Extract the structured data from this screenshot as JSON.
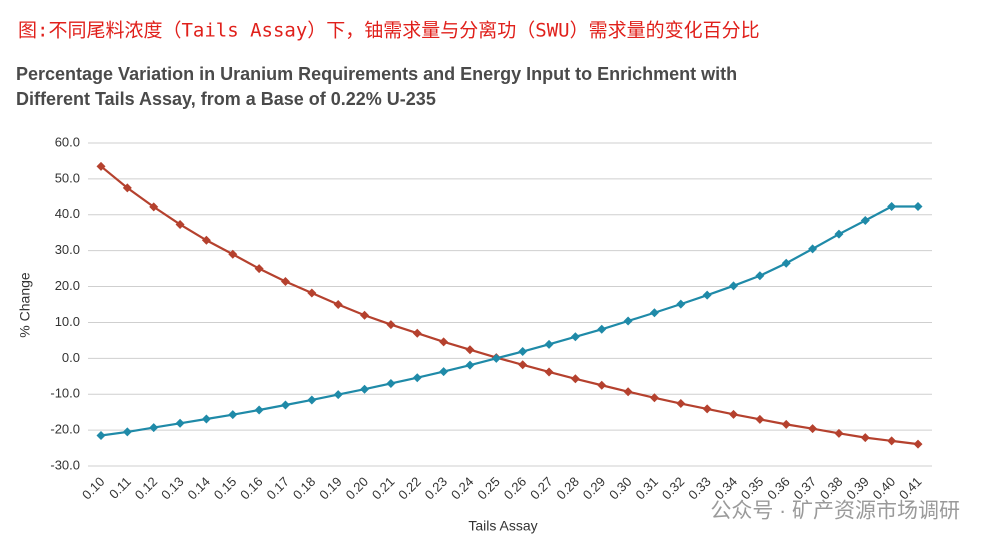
{
  "caption": "图:不同尾料浓度（Tails Assay）下，铀需求量与分离功（SWU）需求量的变化百分比",
  "watermark": "公众号 · 矿产资源市场调研",
  "chart_data": {
    "type": "line",
    "title": [
      "Percentage Variation in Uranium Requirements and Energy Input to Enrichment with",
      "Different Tails Assay, from a Base of 0.22% U-235"
    ],
    "x_label": "Tails Assay",
    "y_label": "% Change",
    "categories": [
      "0.10",
      "0.11",
      "0.12",
      "0.13",
      "0.14",
      "0.15",
      "0.16",
      "0.17",
      "0.18",
      "0.19",
      "0.20",
      "0.21",
      "0.22",
      "0.23",
      "0.24",
      "0.25",
      "0.26",
      "0.27",
      "0.28",
      "0.29",
      "0.30",
      "0.31",
      "0.32",
      "0.33",
      "0.34",
      "0.35",
      "0.36",
      "0.37",
      "0.38",
      "0.39",
      "0.40",
      "0.41"
    ],
    "series": [
      {
        "color": "#b5412e",
        "values": [
          53.5,
          47.5,
          42.2,
          37.3,
          32.9,
          29.0,
          25.0,
          21.4,
          18.2,
          15.0,
          12.0,
          9.4,
          7.0,
          4.6,
          2.4,
          0.2,
          -1.8,
          -3.8,
          -5.7,
          -7.5,
          -9.3,
          -11.0,
          -12.6,
          -14.1,
          -15.6,
          -17.0,
          -18.4,
          -19.6,
          -20.9,
          -22.1,
          -23.0,
          -23.9
        ]
      },
      {
        "color": "#1f8aa8",
        "values": [
          -21.5,
          -20.5,
          -19.3,
          -18.1,
          -16.9,
          -15.7,
          -14.4,
          -13.0,
          -11.6,
          -10.1,
          -8.6,
          -7.0,
          -5.4,
          -3.7,
          -1.9,
          0.0,
          1.9,
          3.9,
          6.0,
          8.1,
          10.4,
          12.7,
          15.1,
          17.6,
          20.2,
          23.0,
          26.5,
          30.5,
          34.6,
          38.4,
          42.3,
          42.3
        ]
      }
    ],
    "ylim": [
      -30,
      60
    ],
    "yticks": [
      {
        "value": -30,
        "label": "-30.0"
      },
      {
        "value": -20,
        "label": "-20.0"
      },
      {
        "value": -10,
        "label": "-10.0"
      },
      {
        "value": 0,
        "label": "0.0"
      },
      {
        "value": 10,
        "label": "10.0"
      },
      {
        "value": 20,
        "label": "20.0"
      },
      {
        "value": 30,
        "label": "30.0"
      },
      {
        "value": 40,
        "label": "40.0"
      },
      {
        "value": 50,
        "label": "50.0"
      },
      {
        "value": 60,
        "label": "60.0"
      }
    ],
    "grid": true
  }
}
